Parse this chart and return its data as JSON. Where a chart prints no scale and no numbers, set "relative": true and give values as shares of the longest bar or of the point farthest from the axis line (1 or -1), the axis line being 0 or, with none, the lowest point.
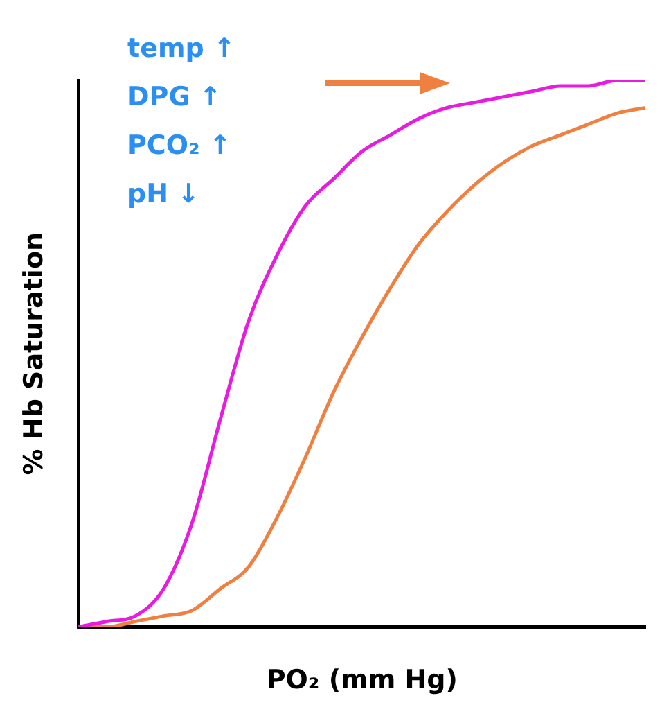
{
  "chart_data": {
    "type": "line",
    "relative": true,
    "xlabel": "PO₂ (mm Hg)",
    "ylabel": "% Hb Saturation",
    "annotations": [
      "temp ↑",
      "DPG ↑",
      "PCO₂ ↑",
      "pH ↓"
    ],
    "categories": [
      null,
      null,
      null,
      null,
      null,
      null,
      null,
      null,
      null,
      null,
      null,
      null,
      null,
      null,
      null,
      null,
      null,
      null,
      null,
      null,
      null
    ],
    "series": [
      {
        "color": "#e81ce0",
        "values": [
          0,
          0.01,
          0.02,
          0.07,
          0.19,
          0.38,
          0.56,
          0.68,
          0.77,
          0.82,
          0.87,
          0.9,
          0.93,
          0.95,
          0.96,
          0.97,
          0.98,
          0.99,
          0.99,
          1,
          1
        ]
      },
      {
        "color": "#f08040",
        "values": [
          0,
          0,
          0.01,
          0.02,
          0.03,
          0.07,
          0.11,
          0.2,
          0.31,
          0.43,
          0.53,
          0.62,
          0.7,
          0.76,
          0.81,
          0.85,
          0.88,
          0.9,
          0.92,
          0.94,
          0.95
        ]
      }
    ]
  }
}
